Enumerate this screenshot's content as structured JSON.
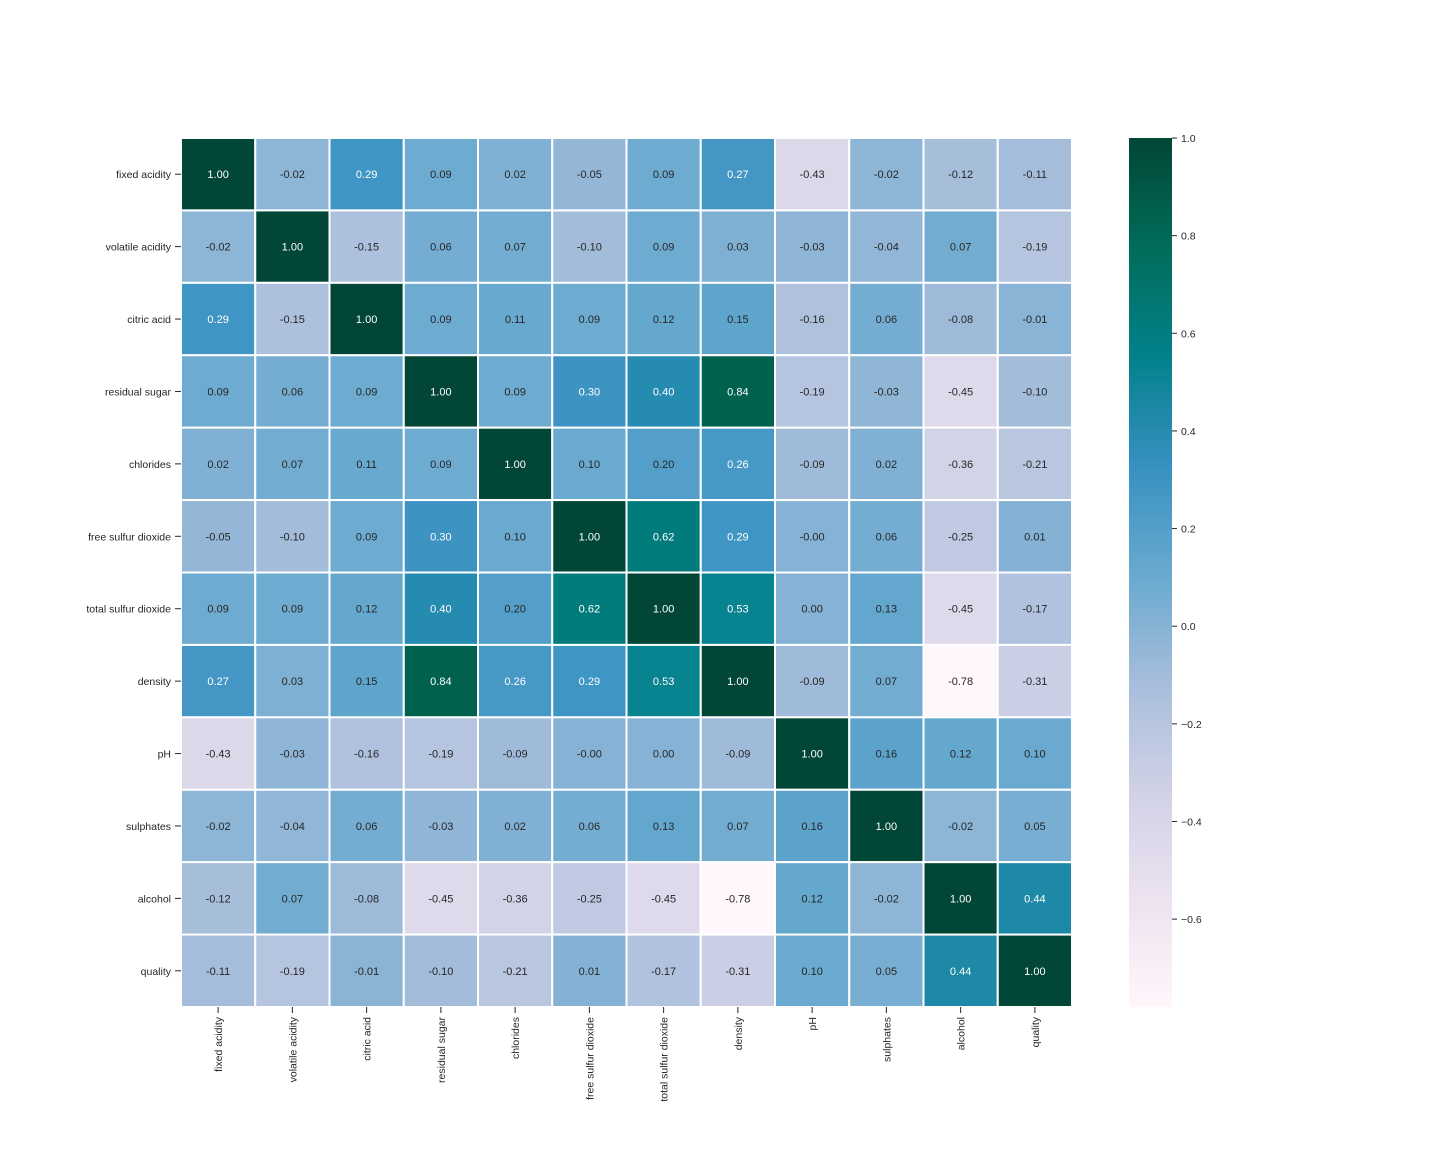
{
  "chart_data": {
    "type": "heatmap",
    "title": "",
    "xlabel": "",
    "ylabel": "",
    "labels": [
      "fixed acidity",
      "volatile acidity",
      "citric acid",
      "residual sugar",
      "chlorides",
      "free sulfur dioxide",
      "total sulfur dioxide",
      "density",
      "pH",
      "sulphates",
      "alcohol",
      "quality"
    ],
    "values": [
      [
        1.0,
        -0.02,
        0.29,
        0.09,
        0.02,
        -0.05,
        0.09,
        0.27,
        -0.43,
        -0.02,
        -0.12,
        -0.11
      ],
      [
        -0.02,
        1.0,
        -0.15,
        0.06,
        0.07,
        -0.1,
        0.09,
        0.03,
        -0.03,
        -0.04,
        0.07,
        -0.19
      ],
      [
        0.29,
        -0.15,
        1.0,
        0.09,
        0.11,
        0.09,
        0.12,
        0.15,
        -0.16,
        0.06,
        -0.08,
        -0.01
      ],
      [
        0.09,
        0.06,
        0.09,
        1.0,
        0.09,
        0.3,
        0.4,
        0.84,
        -0.19,
        -0.03,
        -0.45,
        -0.1
      ],
      [
        0.02,
        0.07,
        0.11,
        0.09,
        1.0,
        0.1,
        0.2,
        0.26,
        -0.09,
        0.02,
        -0.36,
        -0.21
      ],
      [
        -0.05,
        -0.1,
        0.09,
        0.3,
        0.1,
        1.0,
        0.62,
        0.29,
        -0.0,
        0.06,
        -0.25,
        0.01
      ],
      [
        0.09,
        0.09,
        0.12,
        0.4,
        0.2,
        0.62,
        1.0,
        0.53,
        0.0,
        0.13,
        -0.45,
        -0.17
      ],
      [
        0.27,
        0.03,
        0.15,
        0.84,
        0.26,
        0.29,
        0.53,
        1.0,
        -0.09,
        0.07,
        -0.78,
        -0.31
      ],
      [
        -0.43,
        -0.03,
        -0.16,
        -0.19,
        -0.09,
        -0.0,
        0.0,
        -0.09,
        1.0,
        0.16,
        0.12,
        0.1
      ],
      [
        -0.02,
        -0.04,
        0.06,
        -0.03,
        0.02,
        0.06,
        0.13,
        0.07,
        0.16,
        1.0,
        -0.02,
        0.05
      ],
      [
        -0.12,
        0.07,
        -0.08,
        -0.45,
        -0.36,
        -0.25,
        -0.45,
        -0.78,
        0.12,
        -0.02,
        1.0,
        0.44
      ],
      [
        -0.11,
        -0.19,
        -0.01,
        -0.1,
        -0.21,
        0.01,
        -0.17,
        -0.31,
        0.1,
        0.05,
        0.44,
        1.0
      ]
    ],
    "value_labels": [
      [
        "1.00",
        "-0.02",
        "0.29",
        "0.09",
        "0.02",
        "-0.05",
        "0.09",
        "0.27",
        "-0.43",
        "-0.02",
        "-0.12",
        "-0.11"
      ],
      [
        "-0.02",
        "1.00",
        "-0.15",
        "0.06",
        "0.07",
        "-0.10",
        "0.09",
        "0.03",
        "-0.03",
        "-0.04",
        "0.07",
        "-0.19"
      ],
      [
        "0.29",
        "-0.15",
        "1.00",
        "0.09",
        "0.11",
        "0.09",
        "0.12",
        "0.15",
        "-0.16",
        "0.06",
        "-0.08",
        "-0.01"
      ],
      [
        "0.09",
        "0.06",
        "0.09",
        "1.00",
        "0.09",
        "0.30",
        "0.40",
        "0.84",
        "-0.19",
        "-0.03",
        "-0.45",
        "-0.10"
      ],
      [
        "0.02",
        "0.07",
        "0.11",
        "0.09",
        "1.00",
        "0.10",
        "0.20",
        "0.26",
        "-0.09",
        "0.02",
        "-0.36",
        "-0.21"
      ],
      [
        "-0.05",
        "-0.10",
        "0.09",
        "0.30",
        "0.10",
        "1.00",
        "0.62",
        "0.29",
        "-0.00",
        "0.06",
        "-0.25",
        "0.01"
      ],
      [
        "0.09",
        "0.09",
        "0.12",
        "0.40",
        "0.20",
        "0.62",
        "1.00",
        "0.53",
        "0.00",
        "0.13",
        "-0.45",
        "-0.17"
      ],
      [
        "0.27",
        "0.03",
        "0.15",
        "0.84",
        "0.26",
        "0.29",
        "0.53",
        "1.00",
        "-0.09",
        "0.07",
        "-0.78",
        "-0.31"
      ],
      [
        "-0.43",
        "-0.03",
        "-0.16",
        "-0.19",
        "-0.09",
        "-0.00",
        "0.00",
        "-0.09",
        "1.00",
        "0.16",
        "0.12",
        "0.10"
      ],
      [
        "-0.02",
        "-0.04",
        "0.06",
        "-0.03",
        "0.02",
        "0.06",
        "0.13",
        "0.07",
        "0.16",
        "1.00",
        "-0.02",
        "0.05"
      ],
      [
        "-0.12",
        "0.07",
        "-0.08",
        "-0.45",
        "-0.36",
        "-0.25",
        "-0.45",
        "-0.78",
        "0.12",
        "-0.02",
        "1.00",
        "0.44"
      ],
      [
        "-0.11",
        "-0.19",
        "-0.01",
        "-0.10",
        "-0.21",
        "0.01",
        "-0.17",
        "-0.31",
        "0.10",
        "0.05",
        "0.44",
        "1.00"
      ]
    ],
    "colormap": [
      "#fff7fb",
      "#ece2f0",
      "#d0d1e6",
      "#a6bddb",
      "#67a9cf",
      "#3690c0",
      "#02818a",
      "#016c59",
      "#014636"
    ],
    "vmin": -0.78,
    "vmax": 1.0,
    "annot": true,
    "grid_line_color": "#ffffff",
    "colorbar": {
      "position": "right",
      "ticks": [
        1.0,
        0.8,
        0.6,
        0.4,
        0.2,
        0.0,
        -0.2,
        -0.4,
        -0.6
      ],
      "tick_labels": [
        "1.0",
        "0.8",
        "0.6",
        "0.4",
        "0.2",
        "0.0",
        "−0.2",
        "−0.4",
        "−0.6"
      ]
    }
  }
}
